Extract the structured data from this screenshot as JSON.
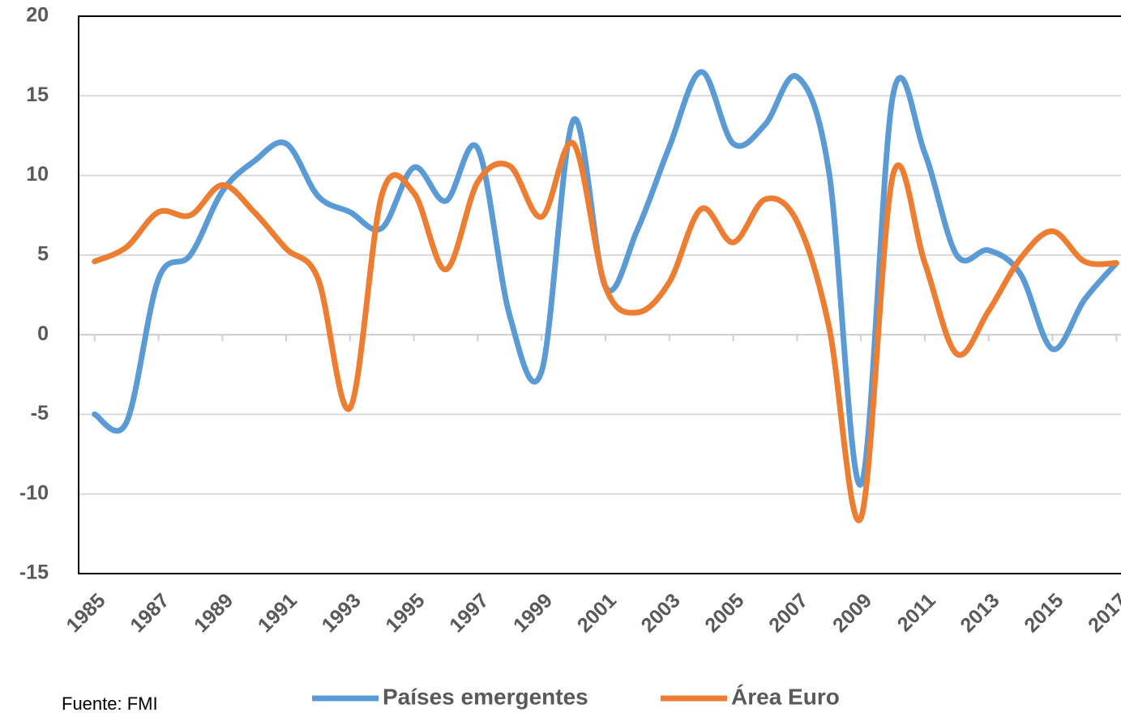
{
  "chart_data": {
    "type": "line",
    "x": [
      1985,
      1986,
      1987,
      1988,
      1989,
      1990,
      1991,
      1992,
      1993,
      1994,
      1995,
      1996,
      1997,
      1998,
      1999,
      2000,
      2001,
      2002,
      2003,
      2004,
      2005,
      2006,
      2007,
      2008,
      2009,
      2010,
      2011,
      2012,
      2013,
      2014,
      2015,
      2016,
      2017
    ],
    "series": [
      {
        "name": "Países emergentes",
        "color": "#5b9bd5",
        "values": [
          -5,
          -5.5,
          3.5,
          5,
          9,
          10.9,
          12,
          8.7,
          7.7,
          6.7,
          10.5,
          8.4,
          11.7,
          1.2,
          -2.3,
          13.5,
          3,
          6.6,
          11.8,
          16.5,
          12,
          13.2,
          16.2,
          10.2,
          -9.4,
          15,
          11.4,
          5,
          5.3,
          3.8,
          -0.9,
          2.2,
          4.5
        ]
      },
      {
        "name": "Área Euro",
        "color": "#ed7d31",
        "values": [
          4.6,
          5.5,
          7.7,
          7.5,
          9.4,
          7.7,
          5.4,
          3.5,
          -4.6,
          8.8,
          8.9,
          4.1,
          9.6,
          10.6,
          7.4,
          12,
          3,
          1.4,
          3.3,
          7.9,
          5.8,
          8.5,
          7.1,
          0.5,
          -11.5,
          10,
          4.5,
          -1.2,
          1.5,
          4.8,
          6.5,
          4.6,
          4.5
        ]
      }
    ],
    "xlim": [
      1984.5,
      2017.5
    ],
    "xticks": [
      1985,
      1987,
      1989,
      1991,
      1993,
      1995,
      1997,
      1999,
      2001,
      2003,
      2005,
      2007,
      2009,
      2011,
      2013,
      2015,
      2017
    ],
    "ylim": [
      -15,
      20
    ],
    "yticks": [
      -15,
      -10,
      -5,
      0,
      5,
      10,
      15,
      20
    ],
    "grid": true,
    "legend": "bottom",
    "source": "Fuente: FMI"
  }
}
